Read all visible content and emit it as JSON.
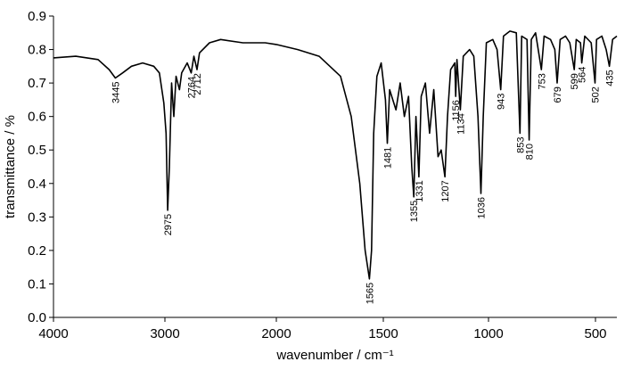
{
  "chart_data": {
    "type": "line",
    "x_label": "wavenumber / cm⁻¹",
    "y_label": "transmittance / %",
    "color": "#000000",
    "x": [
      4000,
      3800,
      3600,
      3500,
      3445,
      3380,
      3300,
      3200,
      3100,
      3050,
      3010,
      2990,
      2975,
      2960,
      2940,
      2920,
      2900,
      2870,
      2850,
      2800,
      2764,
      2740,
      2712,
      2690,
      2600,
      2500,
      2300,
      2100,
      2000,
      1900,
      1800,
      1700,
      1650,
      1610,
      1585,
      1565,
      1555,
      1545,
      1530,
      1510,
      1490,
      1481,
      1470,
      1440,
      1420,
      1400,
      1380,
      1365,
      1355,
      1345,
      1331,
      1320,
      1300,
      1280,
      1260,
      1240,
      1225,
      1207,
      1195,
      1180,
      1160,
      1156,
      1150,
      1134,
      1120,
      1090,
      1070,
      1050,
      1036,
      1025,
      1010,
      980,
      960,
      943,
      930,
      900,
      870,
      853,
      845,
      820,
      810,
      800,
      780,
      753,
      740,
      710,
      690,
      679,
      665,
      640,
      620,
      599,
      590,
      570,
      564,
      550,
      520,
      502,
      495,
      470,
      450,
      435,
      420,
      400
    ],
    "values": [
      0.775,
      0.78,
      0.77,
      0.74,
      0.715,
      0.73,
      0.75,
      0.76,
      0.75,
      0.73,
      0.64,
      0.55,
      0.32,
      0.45,
      0.7,
      0.6,
      0.72,
      0.68,
      0.73,
      0.76,
      0.73,
      0.78,
      0.74,
      0.79,
      0.82,
      0.83,
      0.82,
      0.82,
      0.815,
      0.8,
      0.78,
      0.72,
      0.6,
      0.4,
      0.2,
      0.115,
      0.2,
      0.55,
      0.72,
      0.76,
      0.65,
      0.52,
      0.68,
      0.62,
      0.7,
      0.6,
      0.66,
      0.45,
      0.36,
      0.6,
      0.42,
      0.66,
      0.7,
      0.55,
      0.68,
      0.48,
      0.5,
      0.42,
      0.6,
      0.74,
      0.76,
      0.66,
      0.77,
      0.62,
      0.78,
      0.8,
      0.78,
      0.6,
      0.37,
      0.6,
      0.82,
      0.83,
      0.8,
      0.68,
      0.84,
      0.855,
      0.85,
      0.55,
      0.84,
      0.83,
      0.53,
      0.83,
      0.85,
      0.74,
      0.84,
      0.83,
      0.8,
      0.7,
      0.83,
      0.84,
      0.82,
      0.74,
      0.83,
      0.82,
      0.76,
      0.84,
      0.82,
      0.7,
      0.83,
      0.84,
      0.8,
      0.75,
      0.83,
      0.84
    ],
    "xlim": [
      4000,
      400
    ],
    "xticks": [
      4000,
      3000,
      2000,
      1500,
      1000,
      500
    ],
    "ylim": [
      0,
      0.9
    ],
    "yticks": [
      {
        "value": 0,
        "label": "0.0"
      },
      0.1,
      0.2,
      0.3,
      0.4,
      0.5,
      0.6,
      0.7,
      0.8,
      0.9
    ],
    "annotations": [
      {
        "label": "3445",
        "x": 3445,
        "y": 0.715
      },
      {
        "label": "2975",
        "x": 2975,
        "y": 0.32
      },
      {
        "label": "2764",
        "x": 2764,
        "y": 0.73
      },
      {
        "label": "2712",
        "x": 2712,
        "y": 0.74
      },
      {
        "label": "1565",
        "x": 1565,
        "y": 0.115
      },
      {
        "label": "1481",
        "x": 1481,
        "y": 0.52
      },
      {
        "label": "1355",
        "x": 1355,
        "y": 0.36
      },
      {
        "label": "1331",
        "x": 1331,
        "y": 0.42
      },
      {
        "label": "1207",
        "x": 1207,
        "y": 0.42
      },
      {
        "label": "1156",
        "x": 1156,
        "y": 0.66
      },
      {
        "label": "1134",
        "x": 1134,
        "y": 0.62
      },
      {
        "label": "1036",
        "x": 1036,
        "y": 0.37
      },
      {
        "label": "943",
        "x": 943,
        "y": 0.68
      },
      {
        "label": "853",
        "x": 853,
        "y": 0.55
      },
      {
        "label": "810",
        "x": 810,
        "y": 0.53
      },
      {
        "label": "753",
        "x": 753,
        "y": 0.74
      },
      {
        "label": "679",
        "x": 679,
        "y": 0.7
      },
      {
        "label": "599",
        "x": 599,
        "y": 0.74
      },
      {
        "label": "564",
        "x": 564,
        "y": 0.76
      },
      {
        "label": "502",
        "x": 502,
        "y": 0.7
      },
      {
        "label": "435",
        "x": 435,
        "y": 0.75
      }
    ]
  }
}
